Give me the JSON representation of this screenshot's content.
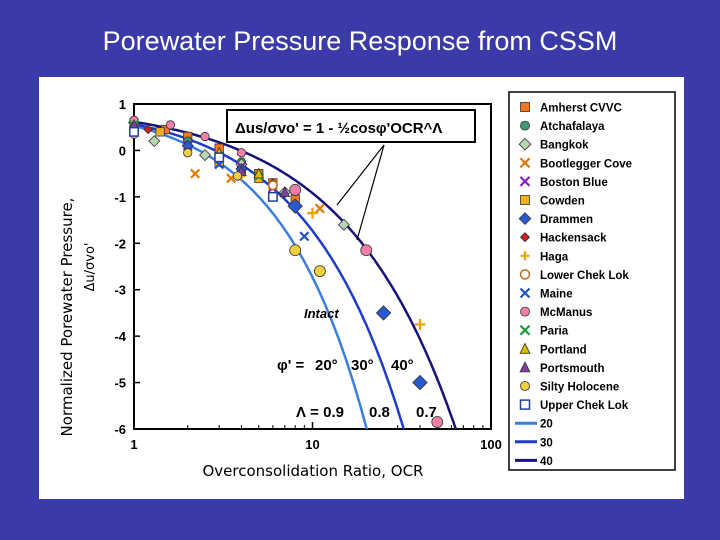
{
  "slide": {
    "title": "Porewater Pressure Response from CSSM"
  },
  "colors": {
    "background": "#3a3aa8",
    "curve_20": "#3a7ee0",
    "curve_30": "#1e3cc8",
    "curve_40": "#14147a",
    "intact": "#1f7de0"
  },
  "chart_data": {
    "type": "scatter",
    "title": "",
    "xlabel": "Overconsolidation Ratio, OCR",
    "ylabel_line1": "Normalized Porewater Pressure,",
    "ylabel_line2": "Δu/σvo'",
    "xscale": "log",
    "xlim": [
      1,
      100
    ],
    "ylim": [
      -6,
      1
    ],
    "xticks": [
      {
        "v": 1,
        "label": "1"
      },
      {
        "v": 10,
        "label": "10"
      },
      {
        "v": 100,
        "label": "100"
      }
    ],
    "yticks": [
      {
        "v": 1,
        "label": "1"
      },
      {
        "v": 0,
        "label": "0"
      },
      {
        "v": -1,
        "label": "-1"
      },
      {
        "v": -2,
        "label": "-2"
      },
      {
        "v": -3,
        "label": "-3"
      },
      {
        "v": -4,
        "label": "-4"
      },
      {
        "v": -5,
        "label": "-5"
      },
      {
        "v": -6,
        "label": "-6"
      }
    ],
    "equation": "Δus/σvo' = 1 - ½cosφ'OCR^Λ",
    "annotation_intact": "Intact",
    "phi_label": "φ' =",
    "phi_values": [
      "20°",
      "30°",
      "40°"
    ],
    "lambda_label": "Λ = 0.9",
    "lambda_values": [
      "0.8",
      "0.7"
    ],
    "curves": [
      {
        "name": "20",
        "phi_deg": 20,
        "lambda": 0.9,
        "color": "#3a7ee0"
      },
      {
        "name": "30",
        "phi_deg": 30,
        "lambda": 0.8,
        "color": "#1e3cc8"
      },
      {
        "name": "40",
        "phi_deg": 40,
        "lambda": 0.7,
        "color": "#14147a"
      }
    ],
    "series": [
      {
        "name": "Amherst CVVC",
        "marker": "square",
        "color": "#f07820",
        "points": [
          [
            1,
            0.5
          ],
          [
            1.5,
            0.45
          ],
          [
            2,
            0.3
          ],
          [
            3,
            0.05
          ],
          [
            4,
            -0.4
          ],
          [
            5,
            -0.5
          ],
          [
            6,
            -0.7
          ],
          [
            8,
            -1.05
          ]
        ]
      },
      {
        "name": "Atchafalaya",
        "marker": "circle",
        "color": "#3a9a70",
        "points": [
          [
            1,
            0.55
          ],
          [
            2,
            0.2
          ],
          [
            4,
            -0.25
          ]
        ]
      },
      {
        "name": "Bangkok",
        "marker": "diamond",
        "color": "#b8d4b0",
        "points": [
          [
            1.3,
            0.2
          ],
          [
            2.5,
            -0.1
          ],
          [
            4,
            -0.3
          ],
          [
            7,
            -0.9
          ],
          [
            15,
            -1.6
          ]
        ]
      },
      {
        "name": "Bootlegger Cove",
        "marker": "xcross",
        "color": "#e07800",
        "points": [
          [
            2.2,
            -0.5
          ],
          [
            3.5,
            -0.6
          ],
          [
            6,
            -0.75
          ],
          [
            11,
            -1.25
          ]
        ]
      },
      {
        "name": "Boston Blue",
        "marker": "xcross",
        "color": "#8020c0",
        "points": [
          [
            1,
            0.55
          ],
          [
            2,
            0.1
          ],
          [
            4,
            -0.35
          ],
          [
            6,
            -0.8
          ]
        ]
      },
      {
        "name": "Cowden",
        "marker": "square",
        "color": "#f0b020",
        "points": [
          [
            1.4,
            0.4
          ],
          [
            3,
            -0.25
          ],
          [
            5,
            -0.6
          ]
        ]
      },
      {
        "name": "Drammen",
        "marker": "diamond",
        "color": "#2a58d0",
        "points": [
          [
            1,
            0.6
          ],
          [
            2,
            0.1
          ],
          [
            4,
            -0.4
          ],
          [
            8,
            -1.2
          ],
          [
            25,
            -3.5
          ],
          [
            40,
            -5.0
          ]
        ]
      },
      {
        "name": "Hackensack",
        "marker": "diamond-small",
        "color": "#d02020",
        "points": [
          [
            1.2,
            0.45
          ],
          [
            3,
            -0.15
          ],
          [
            6,
            -0.7
          ]
        ]
      },
      {
        "name": "Haga",
        "marker": "plus",
        "color": "#f0a000",
        "points": [
          [
            1,
            0.55
          ],
          [
            4,
            -0.55
          ],
          [
            10,
            -1.35
          ],
          [
            40,
            -3.75
          ]
        ]
      },
      {
        "name": "Lower Chek Lok",
        "marker": "circle-open",
        "color": "#c06820",
        "points": [
          [
            1,
            0.5
          ],
          [
            3,
            -0.2
          ],
          [
            6,
            -0.75
          ]
        ]
      },
      {
        "name": "Maine",
        "marker": "xcross",
        "color": "#2050c0",
        "points": [
          [
            1,
            0.6
          ],
          [
            3,
            -0.3
          ],
          [
            9,
            -1.85
          ]
        ]
      },
      {
        "name": "McManus",
        "marker": "circle",
        "color": "#f080a8",
        "points": [
          [
            1,
            0.65
          ],
          [
            1.6,
            0.55
          ],
          [
            2.5,
            0.3
          ],
          [
            4,
            -0.05
          ],
          [
            8,
            -0.85
          ],
          [
            20,
            -2.15
          ],
          [
            50,
            -5.85
          ]
        ]
      },
      {
        "name": "Paria",
        "marker": "xcross",
        "color": "#1a9a3a",
        "points": [
          [
            1,
            0.55
          ],
          [
            5,
            -0.55
          ]
        ]
      },
      {
        "name": "Portland",
        "marker": "triangle",
        "color": "#e0b800",
        "points": [
          [
            1,
            0.5
          ],
          [
            3,
            -0.05
          ],
          [
            5,
            -0.5
          ]
        ]
      },
      {
        "name": "Portsmouth",
        "marker": "triangle",
        "color": "#8040a0",
        "points": [
          [
            1,
            0.55
          ],
          [
            4,
            -0.45
          ],
          [
            7,
            -0.9
          ]
        ]
      },
      {
        "name": "Silty Holocene",
        "marker": "circle",
        "color": "#f0d040",
        "points": [
          [
            1,
            0.35
          ],
          [
            2,
            -0.05
          ],
          [
            3.8,
            -0.55
          ],
          [
            8,
            -2.15
          ],
          [
            11,
            -2.6
          ]
        ]
      },
      {
        "name": "Upper Chek Lok",
        "marker": "square-open",
        "color": "#2040a0",
        "points": [
          [
            1,
            0.4
          ],
          [
            3,
            -0.15
          ],
          [
            6,
            -1.0
          ]
        ]
      }
    ],
    "legend_position": "right"
  }
}
